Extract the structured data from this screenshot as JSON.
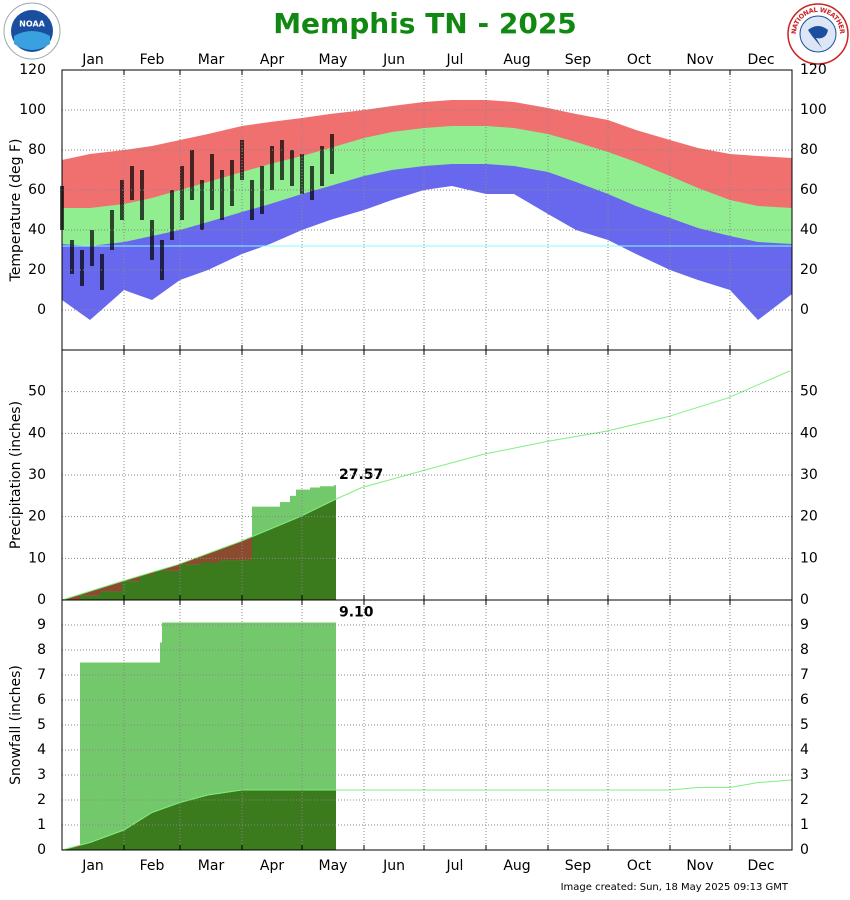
{
  "logos": {
    "left": "NOAA",
    "right": "NATIONAL WEATHER SERVICE"
  },
  "footer": "Image created: Sun, 18 May 2025 09:13 GMT",
  "chart_data": [
    {
      "type": "range",
      "title": "Memphis TN - 2025",
      "ylabel": "Temperature (deg F)",
      "xlim": [
        1,
        366
      ],
      "xticks": [
        {
          "value": 1,
          "label": "Jan"
        },
        {
          "value": 32,
          "label": "Feb"
        },
        {
          "value": 60,
          "label": "Mar"
        },
        {
          "value": 91,
          "label": "Apr"
        },
        {
          "value": 121,
          "label": "May"
        },
        {
          "value": 152,
          "label": "Jun"
        },
        {
          "value": 182,
          "label": "Jul"
        },
        {
          "value": 213,
          "label": "Aug"
        },
        {
          "value": 244,
          "label": "Sep"
        },
        {
          "value": 274,
          "label": "Oct"
        },
        {
          "value": 305,
          "label": "Nov"
        },
        {
          "value": 335,
          "label": "Dec"
        }
      ],
      "ylim": [
        -20,
        120
      ],
      "yticks": [
        0,
        20,
        40,
        60,
        80,
        100,
        120
      ],
      "grid": true,
      "x": [
        1,
        15,
        32,
        46,
        60,
        74,
        91,
        105,
        121,
        135,
        152,
        166,
        182,
        196,
        213,
        227,
        244,
        258,
        274,
        288,
        305,
        319,
        335,
        349,
        366
      ],
      "series": [
        {
          "color": "#f07070",
          "values": [
            75,
            78,
            80,
            82,
            85,
            88,
            92,
            94,
            96,
            98,
            100,
            102,
            104,
            105,
            105,
            104,
            101,
            98,
            95,
            90,
            85,
            81,
            78,
            77,
            76
          ]
        },
        {
          "color": "#90ee90",
          "values": [
            51,
            51,
            53,
            56,
            60,
            64,
            69,
            73,
            77,
            81,
            86,
            89,
            91,
            92,
            92,
            91,
            88,
            84,
            79,
            74,
            67,
            61,
            55,
            52,
            51
          ]
        },
        {
          "color": "#6868ee",
          "values": [
            33,
            32,
            34,
            37,
            40,
            44,
            49,
            53,
            58,
            62,
            67,
            70,
            72,
            73,
            73,
            72,
            69,
            64,
            58,
            52,
            46,
            41,
            37,
            34,
            33
          ]
        },
        {
          "color": "#ffffff",
          "values": [
            5,
            -5,
            10,
            5,
            15,
            20,
            28,
            33,
            40,
            45,
            50,
            55,
            60,
            62,
            58,
            58,
            48,
            40,
            35,
            28,
            20,
            15,
            10,
            -5,
            8
          ]
        }
      ],
      "observed": {
        "color": "#000000",
        "x": [
          1,
          6,
          11,
          16,
          21,
          26,
          31,
          36,
          41,
          46,
          51,
          56,
          61,
          66,
          71,
          76,
          81,
          86,
          91,
          96,
          101,
          106,
          111,
          116,
          121,
          126,
          131,
          136
        ],
        "high": [
          62,
          35,
          30,
          40,
          28,
          50,
          65,
          72,
          70,
          45,
          35,
          60,
          72,
          80,
          65,
          78,
          70,
          75,
          85,
          65,
          72,
          82,
          85,
          80,
          78,
          72,
          82,
          88
        ],
        "low": [
          40,
          18,
          12,
          22,
          10,
          30,
          45,
          55,
          45,
          25,
          15,
          35,
          45,
          55,
          40,
          50,
          45,
          52,
          65,
          45,
          48,
          60,
          65,
          62,
          58,
          55,
          62,
          68
        ]
      },
      "freeze_line": {
        "value": 32,
        "color": "#80ffff"
      }
    },
    {
      "type": "area",
      "ylabel": "Precipitation (inches)",
      "xlim": [
        1,
        366
      ],
      "xticks": [
        {
          "value": 1,
          "label": "Jan"
        },
        {
          "value": 32,
          "label": "Feb"
        },
        {
          "value": 60,
          "label": "Mar"
        },
        {
          "value": 91,
          "label": "Apr"
        },
        {
          "value": 121,
          "label": "May"
        },
        {
          "value": 152,
          "label": "Jun"
        },
        {
          "value": 182,
          "label": "Jul"
        },
        {
          "value": 213,
          "label": "Aug"
        },
        {
          "value": 244,
          "label": "Sep"
        },
        {
          "value": 274,
          "label": "Oct"
        },
        {
          "value": 305,
          "label": "Nov"
        },
        {
          "value": 335,
          "label": "Dec"
        }
      ],
      "ylim": [
        0,
        60
      ],
      "yticks": [
        0,
        10,
        20,
        30,
        40,
        50
      ],
      "grid": true,
      "normal": {
        "color": "#80f080",
        "fill": "#3c7a1e",
        "deficit_color": "#8b4b2e",
        "x": [
          1,
          31,
          59,
          90,
          120,
          137,
          151,
          181,
          212,
          243,
          273,
          304,
          334,
          365
        ],
        "values": [
          0,
          4.5,
          8.5,
          14,
          20,
          24,
          27,
          31,
          35,
          38,
          40.5,
          44,
          48.5,
          55
        ]
      },
      "observed": {
        "color": "#74c86c",
        "x": [
          1,
          10,
          20,
          31,
          40,
          47,
          60,
          70,
          80,
          95,
          96,
          110,
          115,
          118,
          125,
          130,
          137
        ],
        "values": [
          0,
          1,
          2,
          4.5,
          6,
          7,
          8.5,
          9,
          9.5,
          10,
          22.4,
          23.5,
          25,
          26.5,
          27,
          27.3,
          27.57
        ]
      }
    },
    {
      "type": "area",
      "ylabel": "Snowfall (inches)",
      "xlim": [
        1,
        366
      ],
      "xticks": [
        {
          "value": 1,
          "label": "Jan"
        },
        {
          "value": 32,
          "label": "Feb"
        },
        {
          "value": 60,
          "label": "Mar"
        },
        {
          "value": 91,
          "label": "Apr"
        },
        {
          "value": 121,
          "label": "May"
        },
        {
          "value": 152,
          "label": "Jun"
        },
        {
          "value": 182,
          "label": "Jul"
        },
        {
          "value": 213,
          "label": "Aug"
        },
        {
          "value": 244,
          "label": "Sep"
        },
        {
          "value": 274,
          "label": "Oct"
        },
        {
          "value": 305,
          "label": "Nov"
        },
        {
          "value": 335,
          "label": "Dec"
        }
      ],
      "ylim": [
        0,
        10
      ],
      "yticks": [
        0,
        1,
        2,
        3,
        4,
        5,
        6,
        7,
        8,
        9
      ],
      "grid": true,
      "normal": {
        "color": "#80f080",
        "fill": "#3c7a1e",
        "deficit_color": "#8b4b2e",
        "x": [
          1,
          15,
          32,
          46,
          60,
          74,
          91,
          105,
          121,
          305,
          319,
          335,
          349,
          366
        ],
        "values": [
          0,
          0.3,
          0.8,
          1.5,
          1.9,
          2.2,
          2.4,
          2.4,
          2.4,
          2.4,
          2.5,
          2.5,
          2.7,
          2.8
        ]
      },
      "observed": {
        "color": "#74c86c",
        "x": [
          1,
          5,
          10,
          49,
          50,
          51,
          137
        ],
        "values": [
          0,
          0.1,
          7.5,
          7.5,
          8.3,
          9.1,
          9.1
        ],
        "value_labels": [
          null,
          null,
          null,
          null,
          null,
          null,
          "9.10"
        ]
      }
    }
  ]
}
